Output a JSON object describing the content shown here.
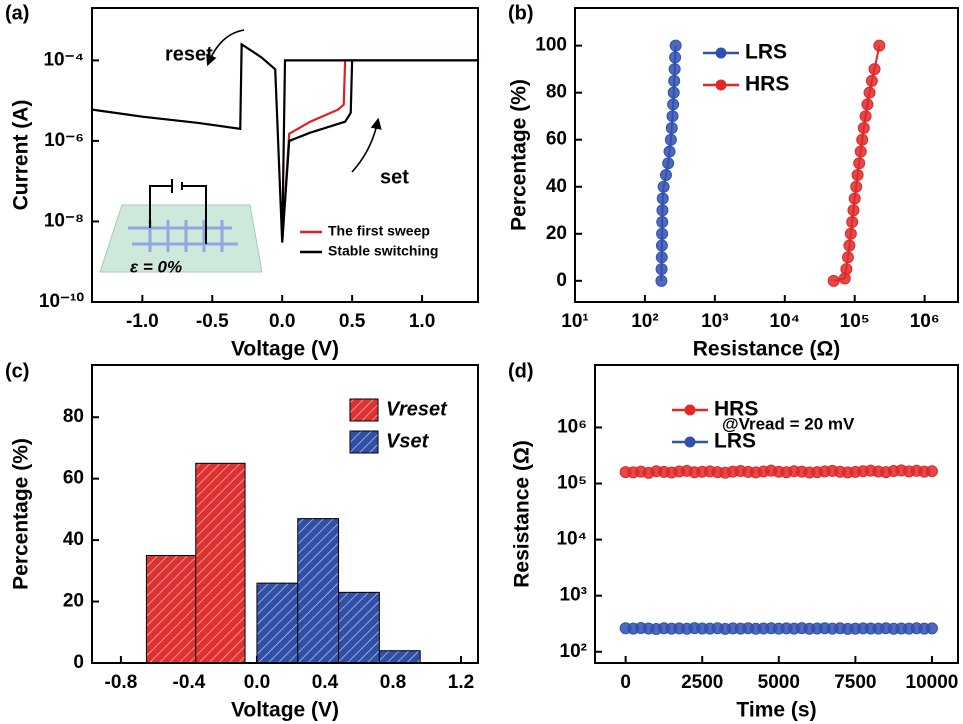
{
  "chart_data": [
    {
      "type": "line",
      "panel_label": "(a)",
      "x_label": "Voltage (V)",
      "y_label": "Current (A)",
      "xscale": "linear",
      "yscale": "log",
      "xlim": [
        -1.36,
        1.4
      ],
      "ylim": [
        1e-10,
        0.002
      ],
      "xticks": [
        {
          "value": -1.0,
          "label": "-1.0"
        },
        -0.5,
        {
          "value": 0,
          "label": "0.0"
        },
        0.5,
        {
          "value": 1.0,
          "label": "1.0"
        }
      ],
      "yticks": [
        {
          "value": 1e-10,
          "label": "10⁻¹⁰"
        },
        {
          "value": 1e-08,
          "label": "10⁻⁸"
        },
        {
          "value": 1e-06,
          "label": "10⁻⁶"
        },
        {
          "value": 0.0001,
          "label": "10⁻⁴"
        }
      ],
      "legend": "lower right",
      "markers": false,
      "annotations": [
        "reset",
        "set",
        "ε = 0%"
      ],
      "series": [
        {
          "name": "The first sweep",
          "color": "#e02020",
          "x": [
            0,
            0.05,
            0.2,
            0.4,
            0.44,
            0.45,
            1.4
          ],
          "values": [
            3e-09,
            1.5e-06,
            3e-06,
            6e-06,
            8e-06,
            0.0001,
            0.0001
          ]
        },
        {
          "name": "Stable switching",
          "color": "#000000",
          "x": [
            0,
            0.05,
            0.2,
            0.45,
            0.49,
            0.5,
            1.4,
            0.02,
            0,
            -0.05,
            -0.15,
            -0.29,
            -0.3,
            -0.6,
            -1.0,
            -1.36
          ],
          "values": [
            3e-09,
            1e-06,
            1.6e-06,
            3e-06,
            5e-06,
            0.0001,
            0.0001,
            0.0001,
            3e-09,
            6e-05,
            0.00012,
            0.00025,
            2e-06,
            2.8e-06,
            4e-06,
            6e-06
          ]
        }
      ]
    },
    {
      "type": "line",
      "panel_label": "(b)",
      "x_label": "Resistance (Ω)",
      "y_label": "Percentage (%)",
      "xscale": "log",
      "yscale": "linear",
      "xlim": [
        10,
        3000000
      ],
      "ylim": [
        -9,
        116
      ],
      "xticks": [
        {
          "value": 10,
          "label": "10¹"
        },
        {
          "value": 100,
          "label": "10²"
        },
        {
          "value": 1000,
          "label": "10³"
        },
        {
          "value": 10000,
          "label": "10⁴"
        },
        {
          "value": 100000,
          "label": "10⁵"
        },
        {
          "value": 1000000,
          "label": "10⁶"
        }
      ],
      "yticks": [
        0,
        20,
        40,
        60,
        80,
        100
      ],
      "legend": "upper right",
      "markers": true,
      "series": [
        {
          "name": "LRS",
          "color": "#3050b0",
          "x": [
            172,
            173,
            174,
            175,
            176,
            177,
            178,
            180,
            185,
            200,
            215,
            225,
            235,
            242,
            248,
            253,
            258,
            262,
            266,
            270,
            275
          ],
          "values": [
            0,
            5,
            10,
            15,
            20,
            25,
            30,
            35,
            40,
            45,
            50,
            55,
            60,
            65,
            70,
            75,
            80,
            85,
            90,
            95,
            100
          ]
        },
        {
          "name": "HRS",
          "color": "#e02828",
          "x": [
            50000,
            72000,
            76000,
            80000,
            84000,
            88000,
            92000,
            96000,
            100000,
            105000,
            110000,
            116000,
            122000,
            128000,
            135000,
            143000,
            152000,
            163000,
            176000,
            192000,
            225000
          ],
          "values": [
            0,
            1,
            5,
            10,
            15,
            20,
            25,
            30,
            35,
            40,
            45,
            50,
            55,
            60,
            65,
            70,
            75,
            80,
            85,
            90,
            100
          ]
        }
      ]
    },
    {
      "type": "histogram",
      "panel_label": "(c)",
      "x_label": "Voltage (V)",
      "y_label": "Percentage (%)",
      "xscale": "linear",
      "yscale": "linear",
      "xlim": [
        -0.97,
        1.3
      ],
      "ylim": [
        0,
        97
      ],
      "xticks": [
        -0.8,
        -0.4,
        {
          "value": 0,
          "label": "0.0"
        },
        0.4,
        0.8,
        1.2
      ],
      "yticks": [
        0,
        20,
        40,
        60,
        80
      ],
      "legend": "upper right",
      "series": [
        {
          "name": "Vreset",
          "color": "#e03030",
          "bins": [
            -0.65,
            -0.36,
            -0.07
          ],
          "values": [
            35,
            65
          ]
        },
        {
          "name": "Vset",
          "color": "#3050a8",
          "bins": [
            0.0,
            0.24,
            0.48,
            0.72,
            0.96
          ],
          "values": [
            26,
            47,
            23,
            4
          ]
        }
      ]
    },
    {
      "type": "scatter",
      "panel_label": "(d)",
      "x_label": "Time (s)",
      "y_label": "Resistance (Ω)",
      "xscale": "linear",
      "yscale": "log",
      "xlim": [
        -1000,
        10850
      ],
      "ylim": [
        63,
        13000000
      ],
      "xticks": [
        0,
        2500,
        5000,
        7500,
        10000
      ],
      "yticks": [
        {
          "value": 100,
          "label": "10²"
        },
        {
          "value": 1000,
          "label": "10³"
        },
        {
          "value": 10000,
          "label": "10⁴"
        },
        {
          "value": 100000,
          "label": "10⁵"
        },
        {
          "value": 1000000,
          "label": "10⁶"
        }
      ],
      "legend": "upper left",
      "markers": true,
      "annotations": [
        "@Vread = 20 mV"
      ],
      "x": [
        0,
        250,
        500,
        750,
        1000,
        1250,
        1500,
        1750,
        2000,
        2250,
        2500,
        2750,
        3000,
        3250,
        3500,
        3750,
        4000,
        4250,
        4500,
        4750,
        5000,
        5250,
        5500,
        5750,
        6000,
        6250,
        6500,
        6750,
        7000,
        7250,
        7500,
        7750,
        8000,
        8250,
        8500,
        8750,
        9000,
        9250,
        9500,
        9750,
        10000
      ],
      "series": [
        {
          "name": "HRS",
          "color": "#e02828",
          "values": [
            160000,
            158000,
            163000,
            155000,
            166000,
            161000,
            157000,
            164000,
            168000,
            159000,
            162000,
            165000,
            160000,
            156000,
            163000,
            167000,
            161000,
            158000,
            164000,
            170000,
            162000,
            159000,
            166000,
            163000,
            157000,
            160000,
            165000,
            168000,
            162000,
            158000,
            161000,
            166000,
            170000,
            164000,
            160000,
            167000,
            172000,
            165000,
            169000,
            163000,
            166000
          ]
        },
        {
          "name": "LRS",
          "color": "#3050b0",
          "values": [
            262,
            258,
            265,
            260,
            255,
            263,
            259,
            261,
            257,
            264,
            260,
            258,
            262,
            256,
            261,
            259,
            263,
            257,
            260,
            262,
            258,
            261,
            259,
            264,
            257,
            260,
            262,
            258,
            263,
            256,
            259,
            261,
            260,
            258,
            262,
            257,
            260,
            259,
            263,
            258,
            261
          ]
        }
      ]
    }
  ]
}
